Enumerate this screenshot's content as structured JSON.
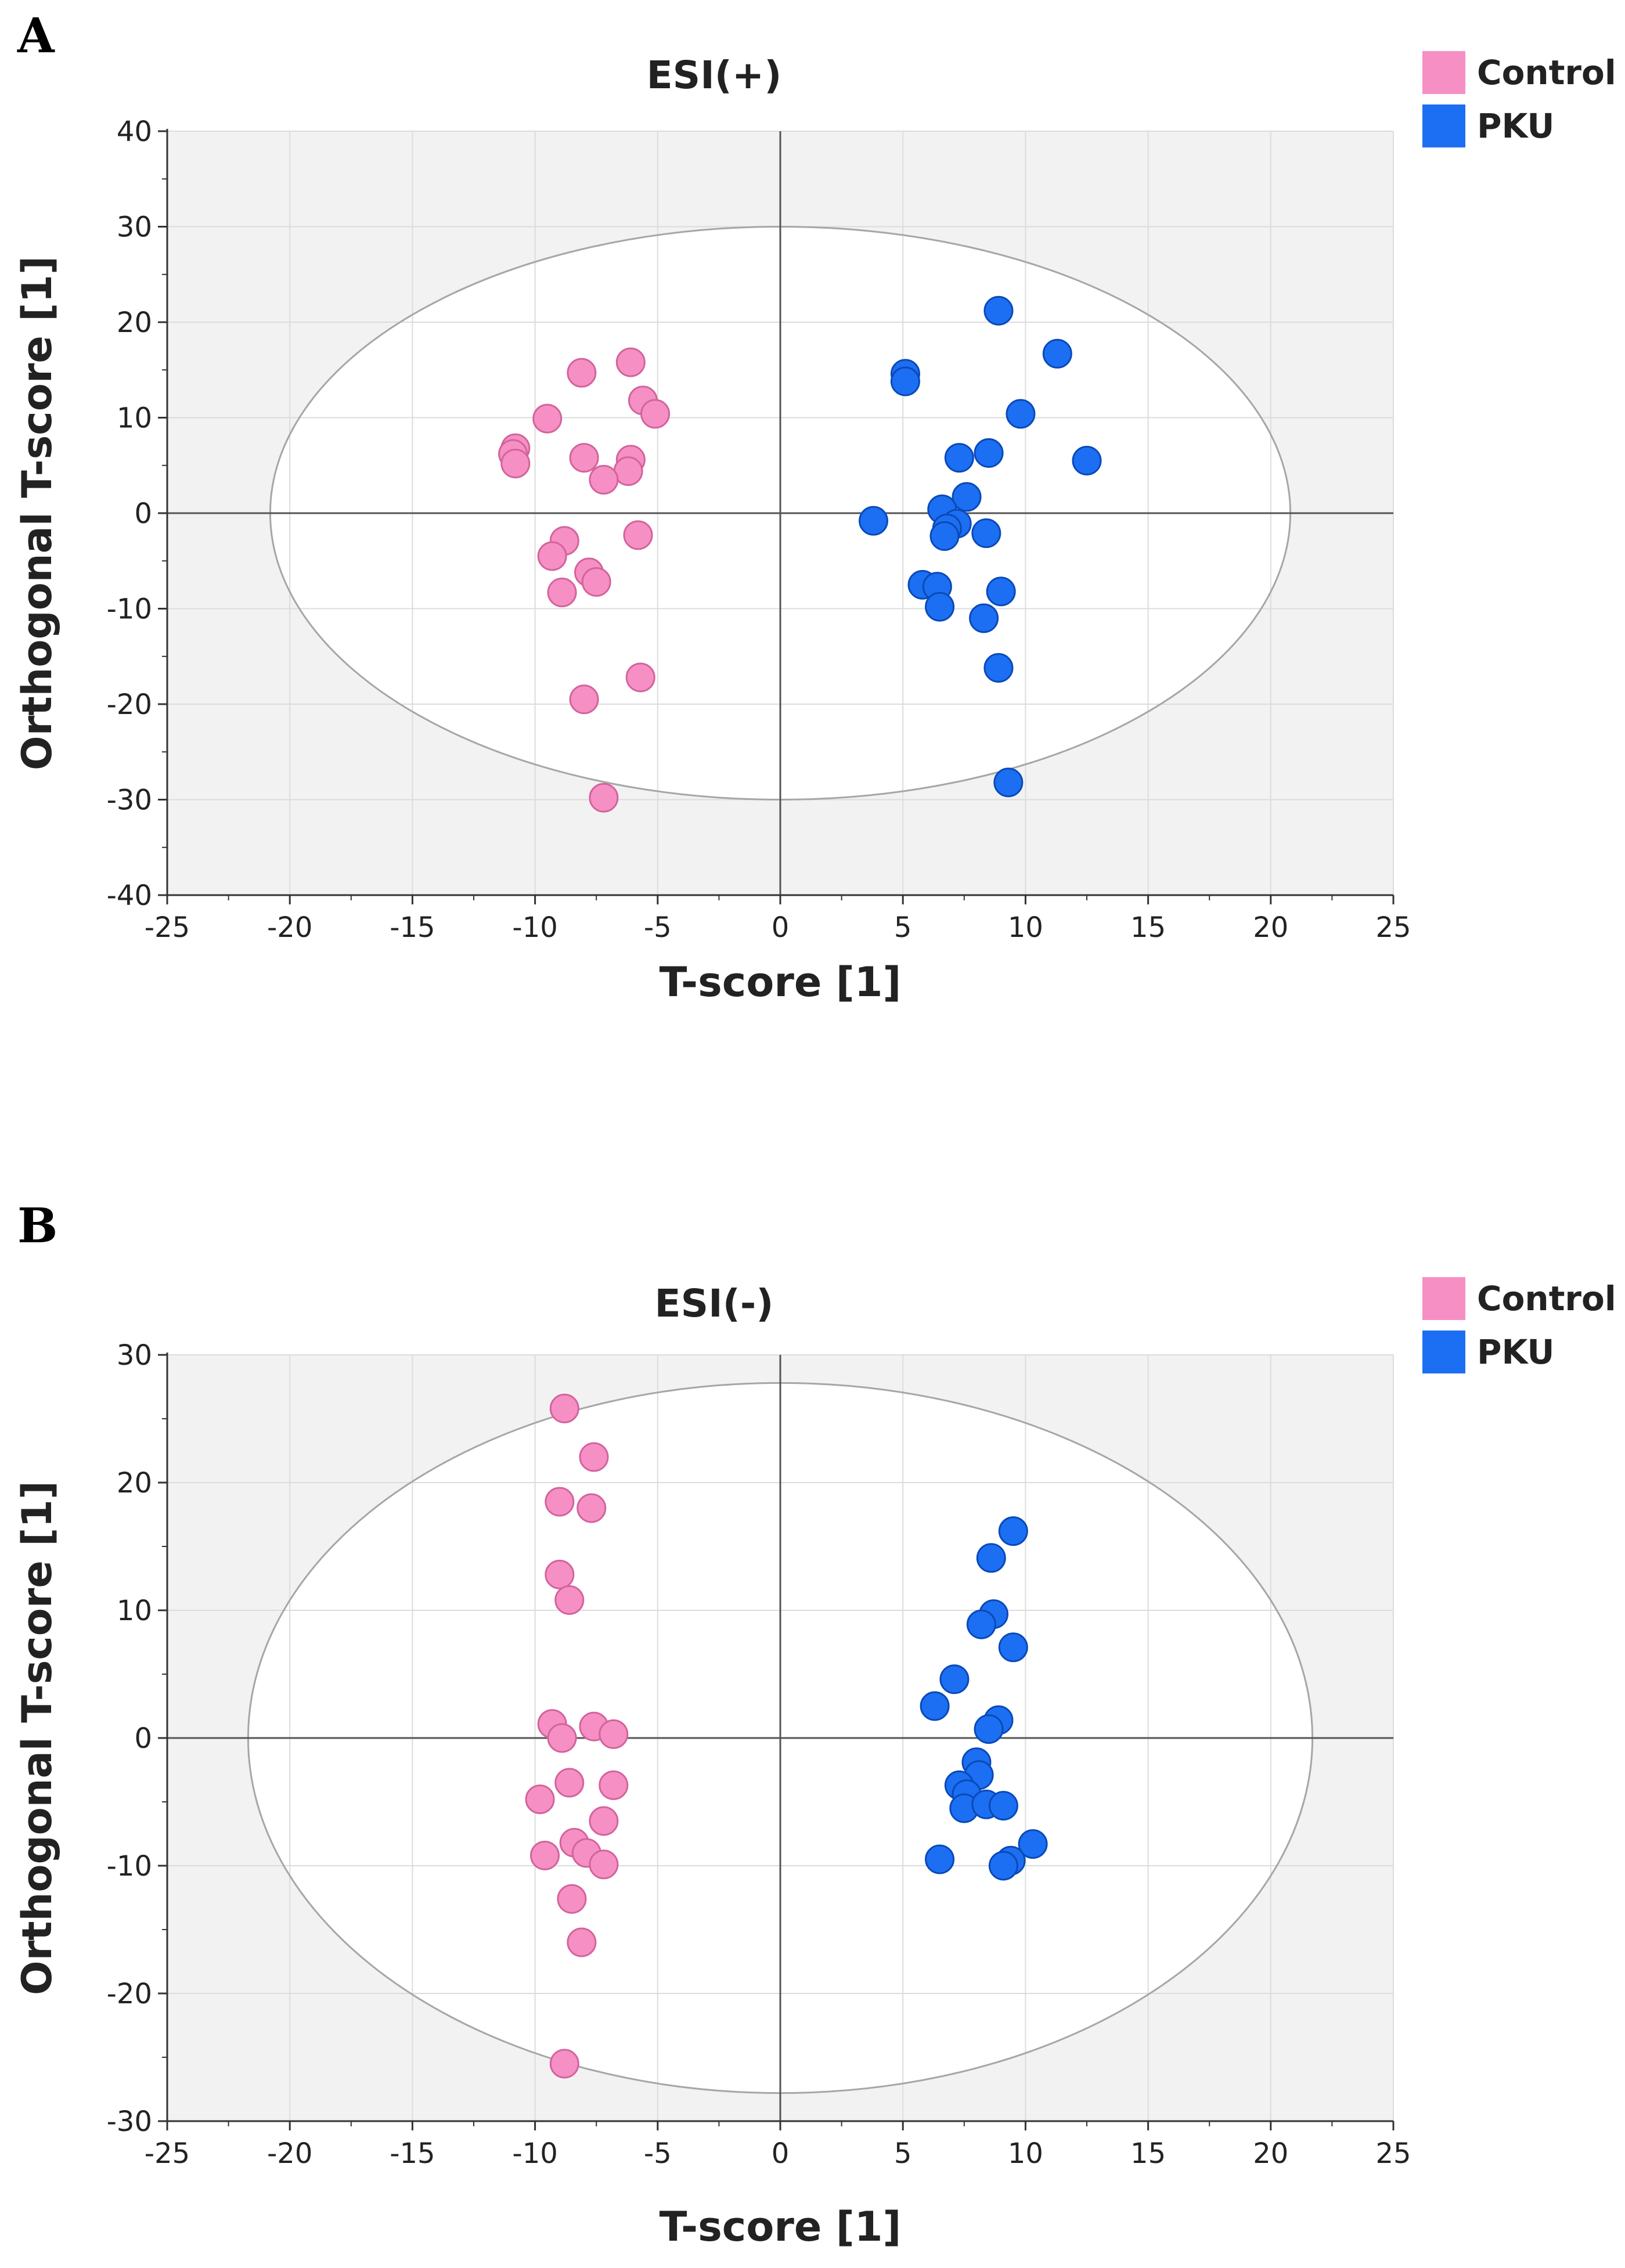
{
  "chart_data": [
    {
      "panel_label": "A",
      "type": "scatter",
      "title": "ESI(+)",
      "xlabel": "T-score [1]",
      "ylabel": "Orthogonal T-score [1]",
      "xlim": [
        -25,
        25
      ],
      "ylim": [
        -40,
        40
      ],
      "xticks": [
        "-25",
        "-20",
        "-15",
        "-10",
        "-5",
        "0",
        "5",
        "10",
        "15",
        "20",
        "25"
      ],
      "yticks": [
        "40",
        "30",
        "20",
        "10",
        "0",
        "-10",
        "-20",
        "-30",
        "-40"
      ],
      "xtick_values": [
        -25,
        -20,
        -15,
        -10,
        -5,
        0,
        5,
        10,
        15,
        20,
        25
      ],
      "ytick_values": [
        40,
        30,
        20,
        10,
        0,
        -10,
        -20,
        -30,
        -40
      ],
      "grid": true,
      "legend_position": "top-right",
      "ellipse": {
        "rx": 20.8,
        "ry": 30
      },
      "series": [
        {
          "name": "Control",
          "color": "#f690c4",
          "stroke": "#d3639c",
          "points": [
            [
              -6.1,
              15.8
            ],
            [
              -8.1,
              14.7
            ],
            [
              -5.6,
              11.8
            ],
            [
              -5.1,
              10.4
            ],
            [
              -9.5,
              9.9
            ],
            [
              -10.8,
              6.8
            ],
            [
              -10.9,
              6.2
            ],
            [
              -10.8,
              5.2
            ],
            [
              -8.0,
              5.8
            ],
            [
              -6.1,
              5.6
            ],
            [
              -6.2,
              4.4
            ],
            [
              -7.2,
              3.5
            ],
            [
              -5.8,
              -2.3
            ],
            [
              -8.8,
              -2.9
            ],
            [
              -9.3,
              -4.5
            ],
            [
              -7.8,
              -6.2
            ],
            [
              -7.5,
              -7.2
            ],
            [
              -8.9,
              -8.3
            ],
            [
              -5.7,
              -17.2
            ],
            [
              -8.0,
              -19.5
            ],
            [
              -7.2,
              -29.8
            ]
          ]
        },
        {
          "name": "PKU",
          "color": "#1c6ff2",
          "stroke": "#0a49b8",
          "points": [
            [
              8.9,
              21.2
            ],
            [
              11.3,
              16.7
            ],
            [
              5.1,
              14.6
            ],
            [
              5.1,
              13.8
            ],
            [
              9.8,
              10.4
            ],
            [
              8.5,
              6.3
            ],
            [
              7.3,
              5.8
            ],
            [
              12.5,
              5.5
            ],
            [
              7.6,
              1.7
            ],
            [
              6.6,
              0.4
            ],
            [
              3.8,
              -0.8
            ],
            [
              7.2,
              -1.1
            ],
            [
              6.8,
              -1.6
            ],
            [
              6.7,
              -2.4
            ],
            [
              8.4,
              -2.1
            ],
            [
              5.8,
              -7.5
            ],
            [
              6.4,
              -7.7
            ],
            [
              9.0,
              -8.2
            ],
            [
              6.5,
              -9.8
            ],
            [
              8.3,
              -11.0
            ],
            [
              8.9,
              -16.2
            ],
            [
              9.3,
              -28.2
            ]
          ]
        }
      ]
    },
    {
      "panel_label": "B",
      "type": "scatter",
      "title": "ESI(-)",
      "xlabel": "T-score [1]",
      "ylabel": "Orthogonal T-score [1]",
      "xlim": [
        -25,
        25
      ],
      "ylim": [
        -30,
        30
      ],
      "xticks": [
        "-25",
        "-20",
        "-15",
        "-10",
        "-5",
        "0",
        "5",
        "10",
        "15",
        "20",
        "25"
      ],
      "yticks": [
        "30",
        "20",
        "10",
        "0",
        "-10",
        "-20",
        "-30"
      ],
      "xtick_values": [
        -25,
        -20,
        -15,
        -10,
        -5,
        0,
        5,
        10,
        15,
        20,
        25
      ],
      "ytick_values": [
        30,
        20,
        10,
        0,
        -10,
        -20,
        -30
      ],
      "grid": true,
      "legend_position": "top-right",
      "ellipse": {
        "rx": 21.7,
        "ry": 27.8
      },
      "series": [
        {
          "name": "Control",
          "color": "#f690c4",
          "stroke": "#d3639c",
          "points": [
            [
              -8.8,
              25.8
            ],
            [
              -7.6,
              22.0
            ],
            [
              -9.0,
              18.5
            ],
            [
              -7.7,
              18.0
            ],
            [
              -9.0,
              12.8
            ],
            [
              -8.6,
              10.8
            ],
            [
              -9.3,
              1.1
            ],
            [
              -7.6,
              0.9
            ],
            [
              -6.8,
              0.3
            ],
            [
              -8.9,
              0.0
            ],
            [
              -8.6,
              -3.5
            ],
            [
              -6.8,
              -3.7
            ],
            [
              -9.8,
              -4.8
            ],
            [
              -7.2,
              -6.5
            ],
            [
              -8.4,
              -8.2
            ],
            [
              -9.6,
              -9.2
            ],
            [
              -7.9,
              -9.0
            ],
            [
              -7.2,
              -9.9
            ],
            [
              -8.5,
              -12.6
            ],
            [
              -8.1,
              -16.0
            ],
            [
              -8.8,
              -25.5
            ]
          ]
        },
        {
          "name": "PKU",
          "color": "#1c6ff2",
          "stroke": "#0a49b8",
          "points": [
            [
              9.5,
              16.2
            ],
            [
              8.6,
              14.1
            ],
            [
              8.7,
              9.7
            ],
            [
              8.2,
              8.9
            ],
            [
              9.5,
              7.1
            ],
            [
              7.1,
              4.6
            ],
            [
              6.3,
              2.5
            ],
            [
              8.9,
              1.4
            ],
            [
              8.5,
              0.7
            ],
            [
              8.0,
              -1.9
            ],
            [
              8.1,
              -2.9
            ],
            [
              7.3,
              -3.7
            ],
            [
              7.6,
              -4.4
            ],
            [
              7.5,
              -5.5
            ],
            [
              8.4,
              -5.2
            ],
            [
              9.1,
              -5.3
            ],
            [
              6.5,
              -9.5
            ],
            [
              10.3,
              -8.3
            ],
            [
              9.4,
              -9.6
            ],
            [
              9.1,
              -10.0
            ]
          ]
        }
      ]
    }
  ]
}
